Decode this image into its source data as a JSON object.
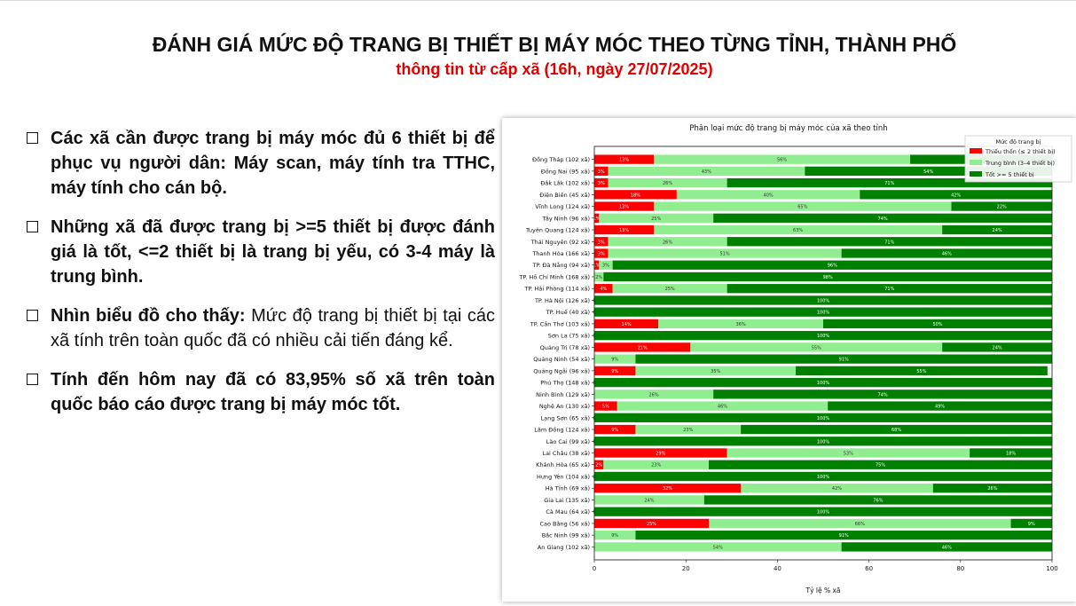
{
  "slide": {
    "title": "ĐÁNH GIÁ MỨC ĐỘ TRANG BỊ THIẾT BỊ MÁY MÓC THEO TỪNG TỈNH, THÀNH PHỐ",
    "subtitle": "thông tin từ cấp xã (16h, ngày 27/07/2025)",
    "bullets": [
      {
        "bold": "Các xã cần được trang bị máy móc đủ 6 thiết bị để phục vụ người dân: Máy scan, máy tính tra TTHC, máy tính cho cán bộ.",
        "normal": ""
      },
      {
        "bold": "Những xã đã được trang bị >=5 thiết bị được đánh giá là tốt, <=2 thiết bị là trang bị yếu, có 3-4 máy là trung bình.",
        "normal": ""
      },
      {
        "bold": "Nhìn biểu đồ cho thấy:",
        "normal": " Mức độ trang bị thiết bị tại các xã tính trên toàn quốc đã có nhiều cải tiến đáng kể."
      },
      {
        "bold": "Tính đến hôm nay đã có 83,95% số xã trên toàn quốc báo cáo được trang bị máy móc tốt.",
        "normal": ""
      }
    ]
  },
  "chart_data": {
    "type": "bar",
    "orientation": "horizontal",
    "stacked": true,
    "title": "Phân loại mức độ trang bị máy móc của xã theo tỉnh",
    "xlabel": "Tỷ lệ % xã",
    "ylabel": "",
    "xlim": [
      0,
      100
    ],
    "xticks": [
      0,
      20,
      40,
      60,
      80,
      100
    ],
    "legend_title": "Mức độ trang bị",
    "legend_position": "top-right",
    "categories": [
      "Đồng Tháp (102 xã)",
      "Đồng Nai (95 xã)",
      "Đắk Lắk (102 xã)",
      "Điện Biên (45 xã)",
      "Vĩnh Long (124 xã)",
      "Tây Ninh (96 xã)",
      "Tuyên Quang (124 xã)",
      "Thái Nguyên (92 xã)",
      "Thanh Hóa (166 xã)",
      "TP. Đà Nẵng (94 xã)",
      "TP. Hồ Chí Minh (168 xã)",
      "TP. Hải Phòng (114 xã)",
      "TP. Hà Nội (126 xã)",
      "TP. Huế (40 xã)",
      "TP. Cần Thơ (103 xã)",
      "Sơn La (75 xã)",
      "Quảng Trị (78 xã)",
      "Quảng Ninh (54 xã)",
      "Quảng Ngãi (96 xã)",
      "Phú Thọ (148 xã)",
      "Ninh Bình (129 xã)",
      "Nghệ An (130 xã)",
      "Lạng Sơn (65 xã)",
      "Lâm Đồng (124 xã)",
      "Lào Cai (99 xã)",
      "Lai Châu (38 xã)",
      "Khánh Hòa (65 xã)",
      "Hưng Yên (104 xã)",
      "Hà Tĩnh (69 xã)",
      "Gia Lai (135 xã)",
      "Cà Mau (64 xã)",
      "Cao Bằng (56 xã)",
      "Bắc Ninh (99 xã)",
      "An Giang (102 xã)"
    ],
    "series": [
      {
        "name": "Thiếu thốn (≤ 2 thiết bị)",
        "color": "#ff0000",
        "label_color": "#ffffff",
        "values": [
          13,
          3,
          3,
          18,
          13,
          1,
          13,
          3,
          3,
          1,
          0,
          4,
          0,
          0,
          14,
          0,
          21,
          0,
          9,
          0,
          0,
          5,
          0,
          9,
          0,
          29,
          2,
          0,
          32,
          0,
          0,
          25,
          0,
          0
        ],
        "labels": [
          "13%",
          "3%",
          "3%",
          "18%",
          "13%",
          "1%",
          "13%",
          "3%",
          "3%",
          "1%",
          "0",
          "4%",
          "0",
          "0",
          "14%",
          "0",
          "21%",
          "0",
          "9%",
          "0",
          "0",
          "5%",
          "0",
          "9%",
          "0",
          "29%",
          "2%",
          "0",
          "32%",
          "0",
          "0",
          "25%",
          "0",
          "0"
        ]
      },
      {
        "name": "Trung bình (3–4 thiết bị)",
        "color": "#90ee90",
        "label_color": "#333333",
        "values": [
          56,
          43,
          26,
          40,
          65,
          25,
          63,
          26,
          51,
          3,
          2,
          25,
          0,
          0,
          36,
          0,
          55,
          9,
          35,
          0,
          26,
          46,
          0,
          23,
          0,
          53,
          23,
          0,
          42,
          24,
          0,
          66,
          9,
          54
        ],
        "labels": [
          "56%",
          "43%",
          "26%",
          "40%",
          "65%",
          "25%",
          "63%",
          "26%",
          "51%",
          "3%",
          "2%",
          "25%",
          "0",
          "0",
          "36%",
          "0",
          "55%",
          "9%",
          "35%",
          "0",
          "26%",
          "46%",
          "0",
          "23%",
          "0",
          "53%",
          "23%",
          "0",
          "42%",
          "24%",
          "0",
          "66%",
          "9%",
          "54%"
        ]
      },
      {
        "name": "Tốt >= 5 thiết bị",
        "color": "#008000",
        "label_color": "#ffffff",
        "values": [
          31,
          54,
          71,
          42,
          22,
          74,
          24,
          71,
          46,
          96,
          98,
          71,
          100,
          100,
          50,
          100,
          24,
          91,
          55,
          100,
          74,
          49,
          100,
          68,
          100,
          18,
          75,
          100,
          26,
          76,
          100,
          9,
          91,
          46
        ],
        "labels": [
          "",
          "54%",
          "71%",
          "42%",
          "22%",
          "74%",
          "24%",
          "71%",
          "46%",
          "96%",
          "98%",
          "71%",
          "100%",
          "100%",
          "50%",
          "100%",
          "24%",
          "91%",
          "55%",
          "100%",
          "74%",
          "49%",
          "100%",
          "68%",
          "100%",
          "18%",
          "75%",
          "100%",
          "26%",
          "76%",
          "100%",
          "9%",
          "91%",
          "46%"
        ]
      }
    ]
  }
}
